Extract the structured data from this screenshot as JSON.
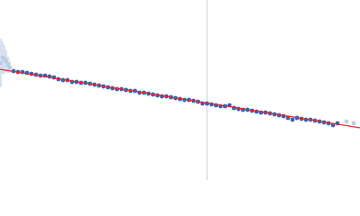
{
  "chart_data": {
    "type": "scatter",
    "xlim": [
      0,
      400
    ],
    "ylim": [
      0,
      200
    ],
    "series": [
      {
        "color": "#bccde6",
        "x": [
          1,
          3,
          5,
          7,
          9,
          11,
          385,
          393
        ],
        "values": [
          130,
          136,
          134,
          132,
          128,
          125,
          65,
          63
        ],
        "errors": [
          27,
          18,
          16,
          12,
          9,
          7,
          2,
          2
        ]
      },
      {
        "color": "#3a62ad",
        "x": [
          15,
          20,
          25,
          30,
          35,
          40,
          45,
          50,
          55,
          60,
          65,
          70,
          75,
          80,
          85,
          90,
          95,
          100,
          105,
          110,
          115,
          120,
          125,
          130,
          135,
          140,
          145,
          150,
          155,
          160,
          165,
          170,
          175,
          180,
          185,
          190,
          195,
          200,
          205,
          210,
          215,
          220,
          225,
          230,
          235,
          240,
          245,
          250,
          255,
          260,
          265,
          270,
          275,
          280,
          285,
          290,
          295,
          300,
          305,
          310,
          315,
          320,
          325,
          330,
          335,
          340,
          345,
          350,
          355,
          360,
          365,
          370,
          375
        ],
        "values": [
          121,
          120,
          120,
          119,
          118,
          117,
          116,
          116,
          115,
          114,
          112,
          111,
          111,
          109,
          109,
          108,
          108,
          107,
          106,
          105,
          104,
          103,
          102,
          101,
          101,
          100,
          99,
          99,
          97,
          97,
          96,
          95,
          94,
          93,
          93,
          92,
          91,
          90,
          89,
          89,
          88,
          87,
          85,
          85,
          84,
          83,
          82,
          82,
          83,
          80,
          79,
          78,
          78,
          77,
          76,
          75,
          75,
          74,
          73,
          72,
          71,
          69,
          67,
          69,
          68,
          67,
          67,
          66,
          65,
          64,
          63,
          61,
          63
        ]
      }
    ],
    "fit": {
      "color": "#e8262b",
      "x": [
        0,
        400
      ],
      "values": [
        123,
        58
      ]
    },
    "vline": {
      "color": "#c9d3e6",
      "x": 230
    }
  }
}
